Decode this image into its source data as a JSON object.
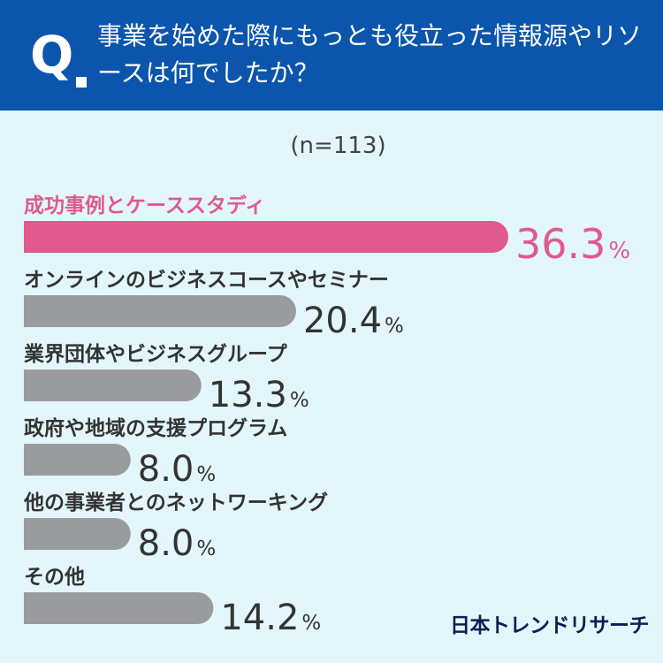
{
  "header": {
    "q_letter": "Q",
    "question": "事業を始めた際にもっとも役立った情報源やリソースは何でしたか？"
  },
  "sample_size": "(n=113)",
  "brand": "日本トレンドリサーチ",
  "colors": {
    "header_bg": "#0b55ad",
    "background": "#e3f6fb",
    "highlight_bar": "#e05a8e",
    "default_bar": "#9a9b9f",
    "highlight_text": "#e05a8e",
    "default_text": "#333333"
  },
  "chart_data": {
    "type": "bar",
    "orientation": "horizontal",
    "categories": [
      "成功事例とケーススタディ",
      "オンラインのビジネスコースやセミナー",
      "業界団体やビジネスグループ",
      "政府や地域の支援プログラム",
      "他の事業者とのネットワーキング",
      "その他"
    ],
    "values": [
      36.3,
      20.4,
      13.3,
      8.0,
      8.0,
      14.2
    ],
    "value_labels": [
      "36.3",
      "20.4",
      "13.3",
      "8.0",
      "8.0",
      "14.2"
    ],
    "unit": "%",
    "highlight_index": 0,
    "title": "",
    "xlabel": "",
    "ylabel": ""
  }
}
